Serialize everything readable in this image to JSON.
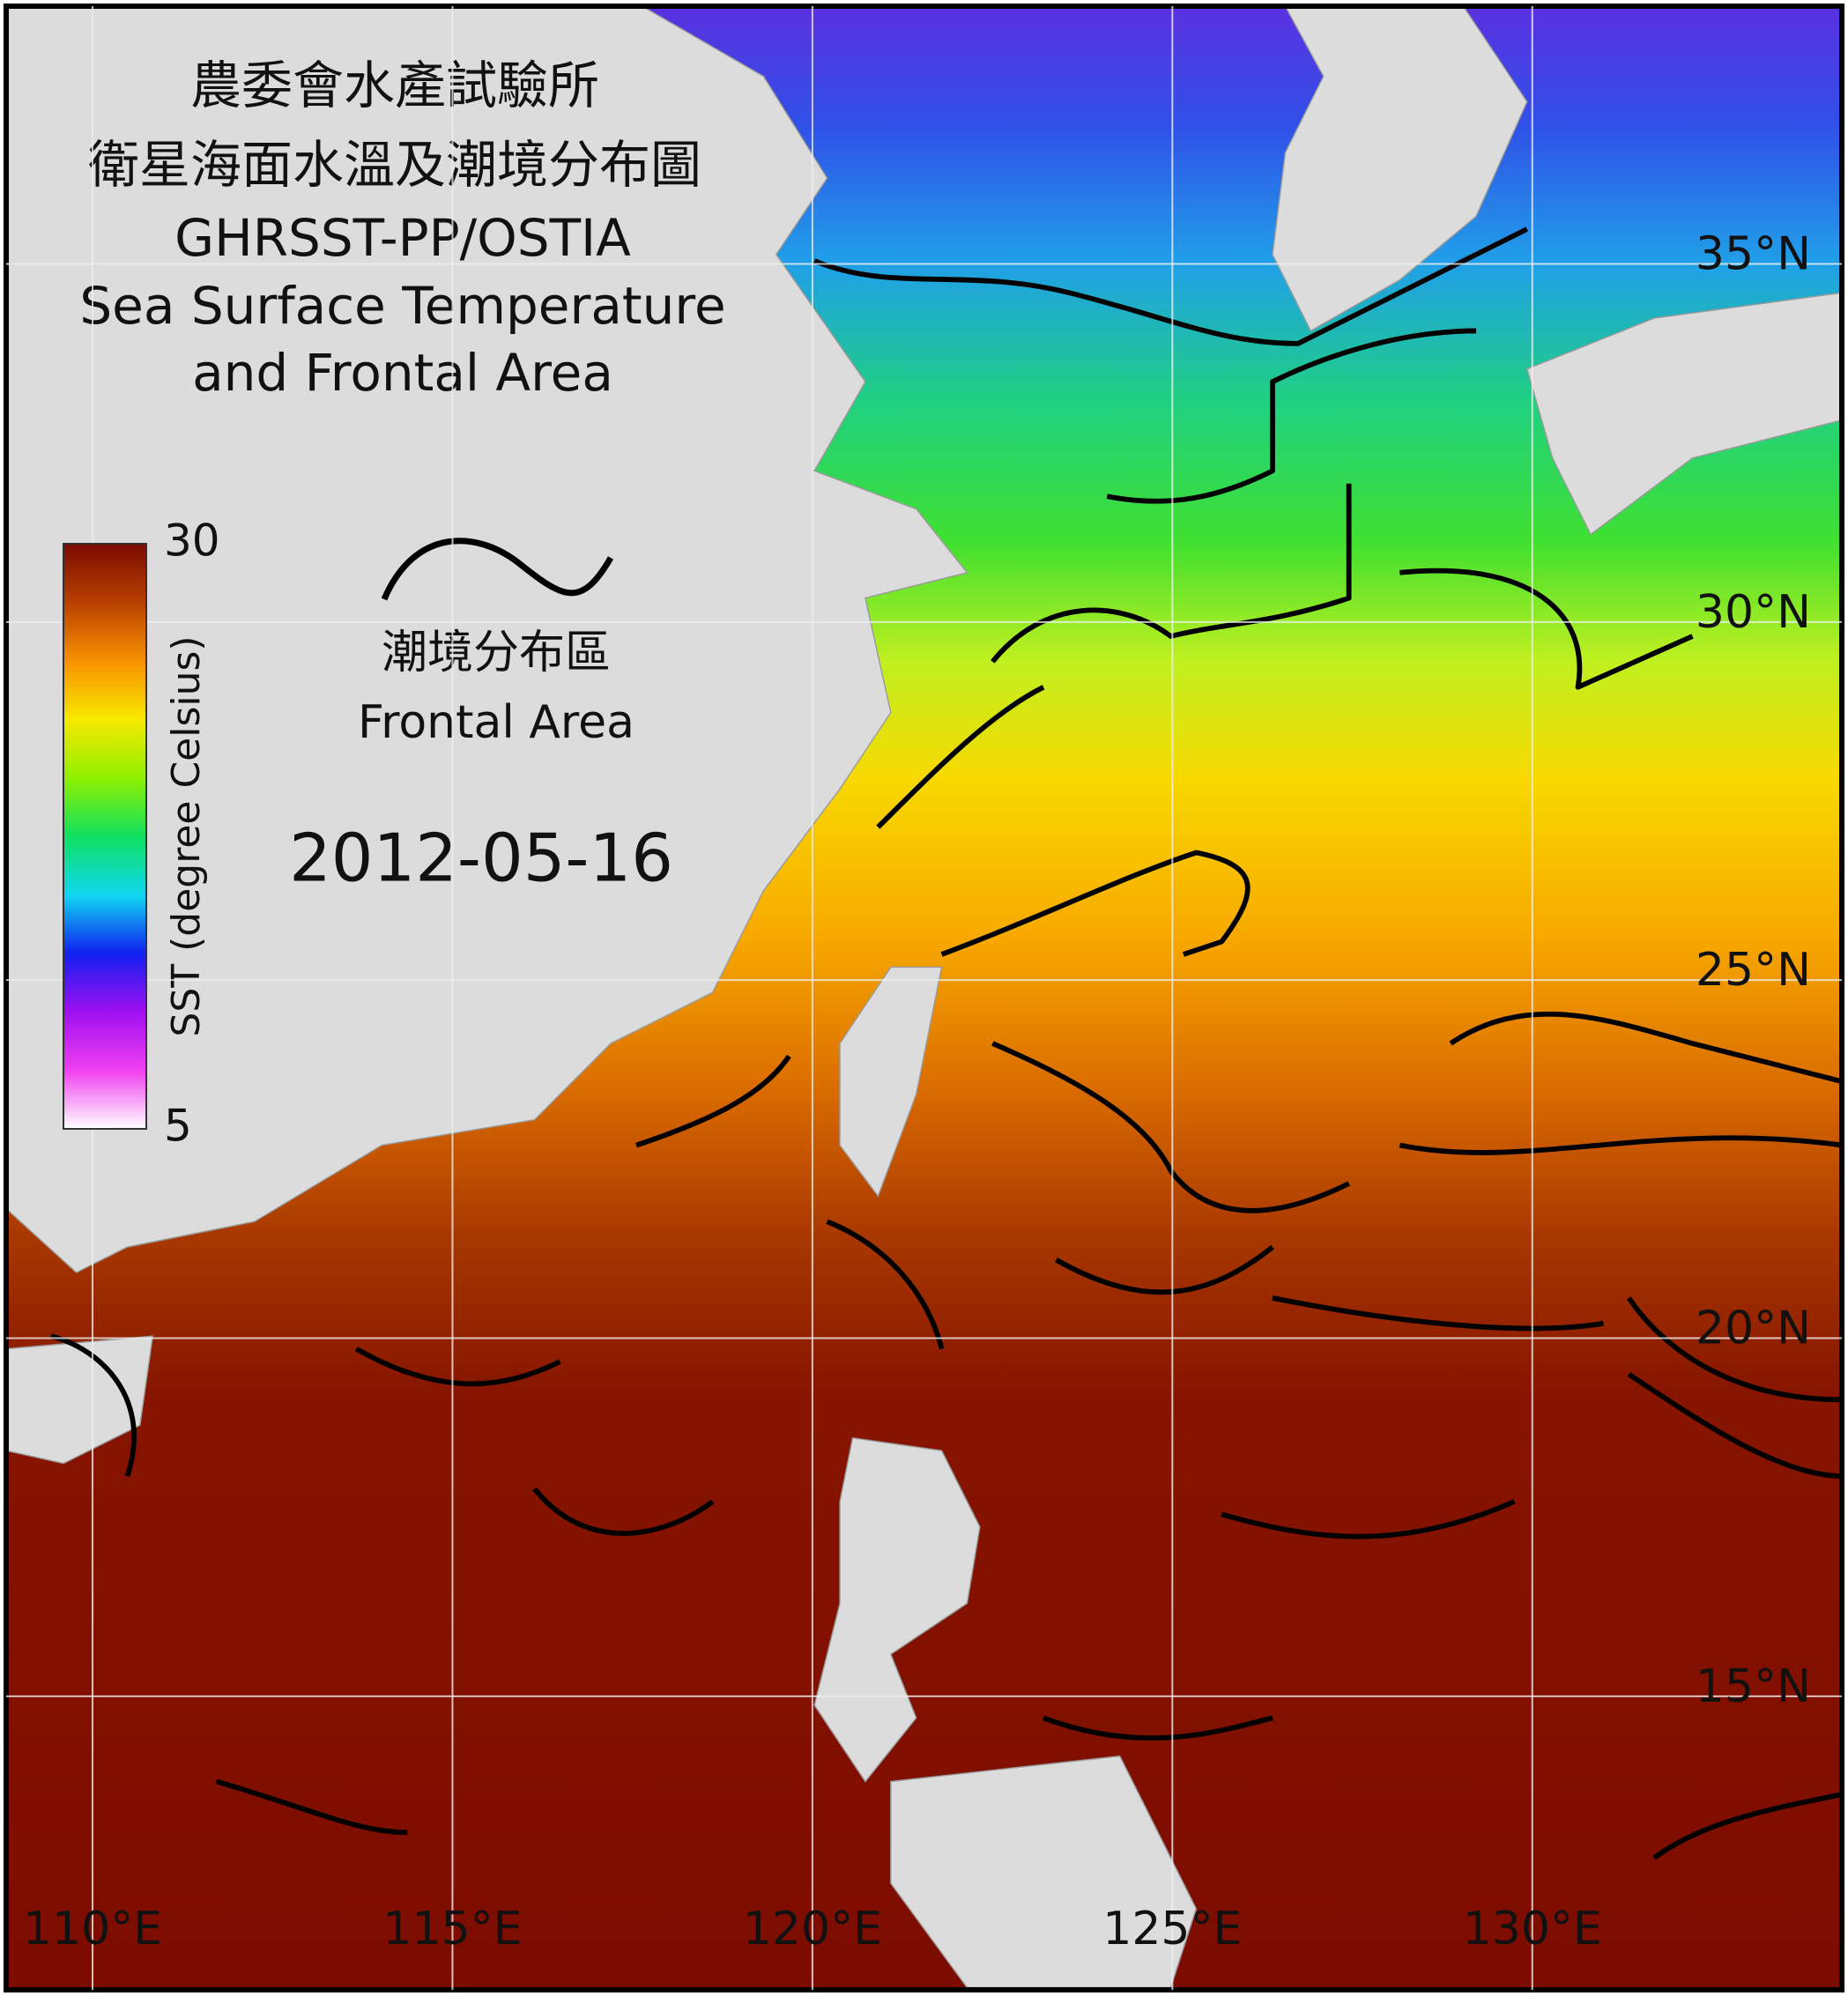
{
  "header": {
    "title_zh": "農委會水產試驗所",
    "subtitle_zh": "衛星海面水溫及潮境分布圖",
    "product": "GHRSST-PP/OSTIA",
    "title_en_1": "Sea Surface Temperature",
    "title_en_2": "and Frontal Area"
  },
  "date": "2012-05-16",
  "colorbar": {
    "label": "SST (degree Celsius)",
    "range": [
      5,
      30
    ],
    "ticks": [
      5,
      30
    ]
  },
  "legend": {
    "label_zh": "潮境分布區",
    "label_en": "Frontal Area"
  },
  "map": {
    "xlim": [
      108.8,
      134.3
    ],
    "ylim": [
      10.9,
      38.6
    ],
    "xticks": [
      {
        "value": 110,
        "label": "110°E"
      },
      {
        "value": 115,
        "label": "115°E"
      },
      {
        "value": 120,
        "label": "120°E"
      },
      {
        "value": 125,
        "label": "125°E"
      },
      {
        "value": 130,
        "label": "130°E"
      }
    ],
    "yticks": [
      {
        "value": 15,
        "label": "15°N"
      },
      {
        "value": 20,
        "label": "20°N"
      },
      {
        "value": 25,
        "label": "25°N"
      },
      {
        "value": 30,
        "label": "30°N"
      },
      {
        "value": 35,
        "label": "35°N"
      }
    ]
  }
}
